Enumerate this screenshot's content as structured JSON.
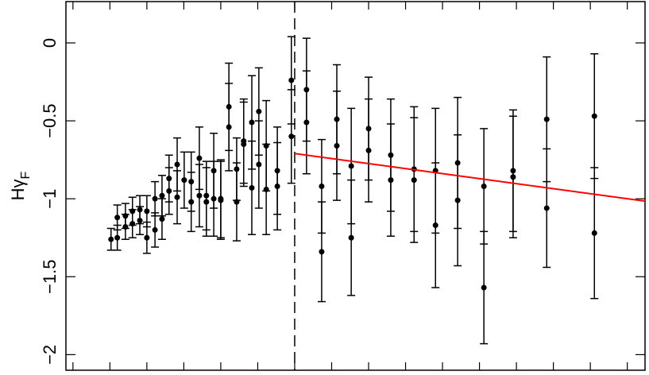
{
  "chart_data": {
    "type": "errorbar-scatter",
    "ylabel": "Hγ",
    "ylabel_sub": "F",
    "xlim": [
      -6.19,
      9.48
    ],
    "xticks": [
      -6,
      -5,
      -4,
      -3,
      -2,
      -1,
      0,
      1,
      2,
      3,
      4,
      5,
      6,
      7,
      8,
      9
    ],
    "ylim": [
      -2.1,
      0.265
    ],
    "yticks": [
      0,
      {
        "value": -0.5,
        "label": "−0.5"
      },
      {
        "value": -1,
        "label": "−1"
      },
      {
        "value": -1.5,
        "label": "−1.5"
      },
      {
        "value": -2,
        "label": "−2"
      }
    ],
    "vline": 0,
    "color": "#000000",
    "x": [
      -4.97,
      -4.8,
      -4.8,
      -4.58,
      -4.58,
      -4.39,
      -4.39,
      -4.19,
      -4.19,
      -4.0,
      -4.0,
      -3.78,
      -3.78,
      -3.59,
      -3.59,
      -3.4,
      -3.4,
      -3.18,
      -3.18,
      -2.99,
      -2.8,
      -2.8,
      -2.58,
      -2.58,
      -2.39,
      -2.39,
      -2.19,
      -2.19,
      -2.0,
      -2.0,
      -1.78,
      -1.78,
      -1.57,
      -1.57,
      -1.38,
      -1.38,
      -1.16,
      -1.16,
      -0.97,
      -0.97,
      -0.77,
      -0.77,
      -0.47,
      -0.47,
      -0.09,
      -0.09,
      0.32,
      0.32,
      0.73,
      0.73,
      1.14,
      1.14,
      1.53,
      1.53,
      2.0,
      2.0,
      2.6,
      2.6,
      3.23,
      3.23,
      3.81,
      3.81,
      4.41,
      4.41,
      5.12,
      5.12,
      5.91,
      5.91,
      6.82,
      6.82,
      8.11,
      8.11
    ],
    "values": [
      -1.26,
      -1.25,
      -1.12,
      -1.18,
      -1.11,
      -1.16,
      -1.08,
      -1.14,
      -1.07,
      -1.25,
      -1.08,
      -1.2,
      -1.0,
      -1.13,
      -0.98,
      -0.95,
      -0.87,
      -0.99,
      -0.78,
      -0.88,
      -1.02,
      -0.89,
      -0.98,
      -0.74,
      -1.02,
      -0.98,
      -1.0,
      -0.82,
      -1.0,
      -1.01,
      -0.41,
      -0.54,
      -0.81,
      -1.02,
      -0.63,
      -0.65,
      -0.51,
      -0.93,
      -0.44,
      -0.78,
      -0.66,
      -0.94,
      -0.82,
      -0.92,
      -0.24,
      -0.6,
      -0.3,
      -0.51,
      -0.92,
      -1.34,
      -0.49,
      -0.66,
      -0.79,
      -1.25,
      -0.55,
      -0.69,
      -0.72,
      -0.88,
      -0.81,
      -0.88,
      -0.82,
      -1.17,
      -0.77,
      -1.01,
      -0.92,
      -1.57,
      -0.82,
      -0.86,
      -0.49,
      -1.06,
      -0.47,
      -1.22
    ],
    "errors": [
      0.07,
      0.08,
      0.08,
      0.08,
      0.08,
      0.09,
      0.09,
      0.09,
      0.09,
      0.1,
      0.1,
      0.11,
      0.11,
      0.13,
      0.13,
      0.15,
      0.15,
      0.17,
      0.17,
      0.18,
      0.19,
      0.19,
      0.2,
      0.2,
      0.22,
      0.22,
      0.24,
      0.24,
      0.25,
      0.25,
      0.28,
      0.28,
      0.2,
      0.25,
      0.27,
      0.27,
      0.3,
      0.3,
      0.28,
      0.28,
      0.29,
      0.29,
      0.28,
      0.28,
      0.28,
      0.3,
      0.33,
      0.33,
      0.3,
      0.32,
      0.35,
      0.35,
      0.37,
      0.37,
      0.33,
      0.33,
      0.36,
      0.36,
      0.4,
      0.4,
      0.4,
      0.4,
      0.42,
      0.42,
      0.37,
      0.36,
      0.39,
      0.39,
      0.4,
      0.38,
      0.4,
      0.42
    ],
    "fit": {
      "x": [
        0,
        9.48
      ],
      "values": [
        -0.71,
        -1.015
      ],
      "color": "#ff0000"
    }
  }
}
